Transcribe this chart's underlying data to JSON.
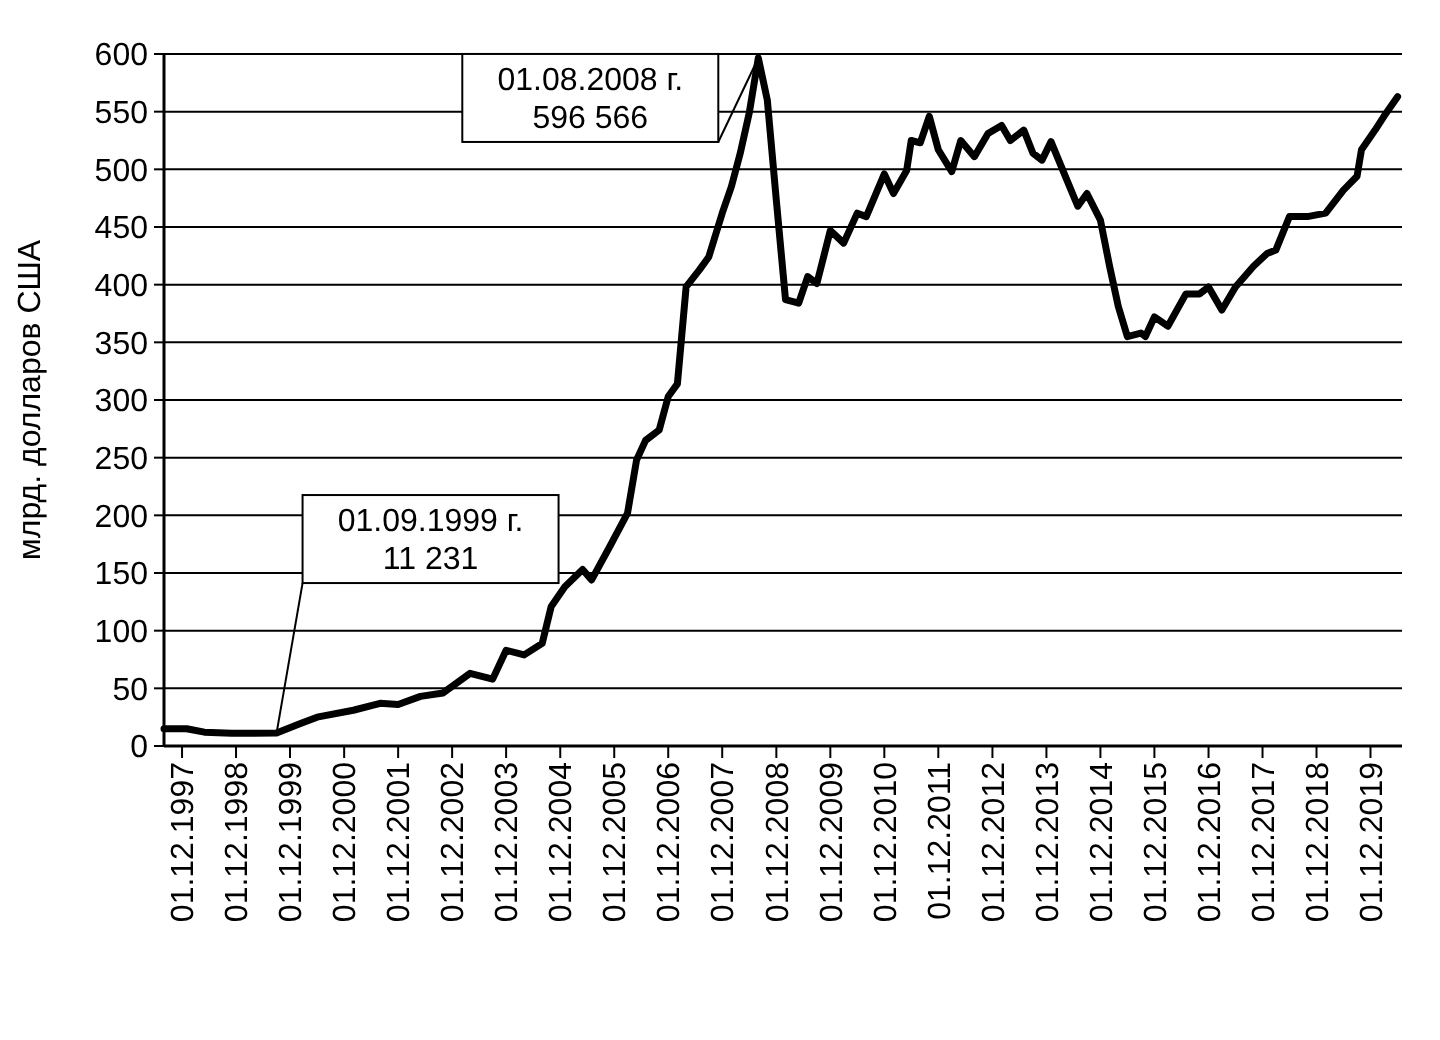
{
  "chart_data": {
    "type": "line",
    "ylabel": "млрд. долларов США",
    "x": [
      "1997-08-01",
      "1998-01-01",
      "1998-05-01",
      "1998-11-01",
      "1999-09-01",
      "2000-02-01",
      "2000-06-01",
      "2001-02-01",
      "2001-08-01",
      "2001-12-01",
      "2002-05-01",
      "2002-10-01",
      "2003-04-01",
      "2003-09-01",
      "2003-12-01",
      "2004-04-01",
      "2004-08-01",
      "2004-10-01",
      "2005-01-01",
      "2005-05-01",
      "2005-07-01",
      "2005-11-01",
      "2006-03-01",
      "2006-05-01",
      "2006-07-01",
      "2006-10-01",
      "2006-12-01",
      "2007-02-01",
      "2007-04-01",
      "2007-07-01",
      "2007-09-01",
      "2007-12-01",
      "2008-02-01",
      "2008-04-01",
      "2008-06-01",
      "2008-08-01",
      "2008-10-01",
      "2008-12-01",
      "2009-02-01",
      "2009-05-01",
      "2009-07-01",
      "2009-09-01",
      "2009-12-01",
      "2010-03-01",
      "2010-06-01",
      "2010-08-01",
      "2010-12-01",
      "2011-02-01",
      "2011-05-01",
      "2011-06-01",
      "2011-08-01",
      "2011-10-01",
      "2011-12-01",
      "2012-03-01",
      "2012-05-01",
      "2012-08-01",
      "2012-11-01",
      "2013-02-01",
      "2013-04-01",
      "2013-07-01",
      "2013-09-01",
      "2013-11-01",
      "2014-01-01",
      "2014-04-01",
      "2014-07-01",
      "2014-09-01",
      "2014-12-01",
      "2015-02-01",
      "2015-04-01",
      "2015-06-01",
      "2015-09-01",
      "2015-10-01",
      "2015-12-01",
      "2016-03-01",
      "2016-07-01",
      "2016-10-01",
      "2016-12-01",
      "2017-03-01",
      "2017-06-01",
      "2017-10-01",
      "2018-01-01",
      "2018-03-01",
      "2018-06-01",
      "2018-10-01",
      "2019-02-01",
      "2019-06-01",
      "2019-09-01",
      "2019-10-01",
      "2020-01-01",
      "2020-03-01",
      "2020-06-01"
    ],
    "series": [
      {
        "color": "#000000",
        "values": [
          15,
          15,
          12,
          11,
          11.231,
          19,
          25,
          31,
          37,
          36,
          43,
          46,
          63,
          58,
          83,
          79,
          89,
          121,
          138,
          153,
          144,
          173,
          202,
          248,
          265,
          274,
          303,
          314,
          398,
          413,
          424,
          462,
          485,
          514,
          549,
          596.566,
          560,
          473,
          387,
          384,
          407,
          401,
          447,
          436,
          462,
          459,
          496,
          479,
          499,
          525,
          523,
          546,
          517,
          498,
          525,
          511,
          531,
          538,
          525,
          534,
          514,
          508,
          524,
          496,
          468,
          479,
          456,
          416,
          381,
          355,
          358,
          355,
          372,
          364,
          392,
          392,
          398,
          378,
          398,
          416,
          427,
          430,
          459,
          459,
          462,
          482,
          494,
          517,
          534,
          546,
          563
        ]
      }
    ],
    "xlim": [
      "1997-08-01",
      "2020-07-01"
    ],
    "xticks": [
      {
        "value": "1997-12-01",
        "label": "01.12.1997"
      },
      {
        "value": "1998-12-01",
        "label": "01.12.1998"
      },
      {
        "value": "1999-12-01",
        "label": "01.12.1999"
      },
      {
        "value": "2000-12-01",
        "label": "01.12.2000"
      },
      {
        "value": "2001-12-01",
        "label": "01.12.2001"
      },
      {
        "value": "2002-12-01",
        "label": "01.12.2002"
      },
      {
        "value": "2003-12-01",
        "label": "01.12.2003"
      },
      {
        "value": "2004-12-01",
        "label": "01.12.2004"
      },
      {
        "value": "2005-12-01",
        "label": "01.12.2005"
      },
      {
        "value": "2006-12-01",
        "label": "01.12.2006"
      },
      {
        "value": "2007-12-01",
        "label": "01.12.2007"
      },
      {
        "value": "2008-12-01",
        "label": "01.12.2008"
      },
      {
        "value": "2009-12-01",
        "label": "01.12.2009"
      },
      {
        "value": "2010-12-01",
        "label": "01.12.2010"
      },
      {
        "value": "2011-12-01",
        "label": "01.12.2011"
      },
      {
        "value": "2012-12-01",
        "label": "01.12.2012"
      },
      {
        "value": "2013-12-01",
        "label": "01.12.2013"
      },
      {
        "value": "2014-12-01",
        "label": "01.12.2014"
      },
      {
        "value": "2015-12-01",
        "label": "01.12.2015"
      },
      {
        "value": "2016-12-01",
        "label": "01.12.2016"
      },
      {
        "value": "2017-12-01",
        "label": "01.12.2017"
      },
      {
        "value": "2018-12-01",
        "label": "01.12.2018"
      },
      {
        "value": "2019-12-01",
        "label": "01.12.2019"
      }
    ],
    "ylim": [
      0,
      600
    ],
    "yticks": [
      0,
      50,
      100,
      150,
      200,
      250,
      300,
      350,
      400,
      450,
      500,
      550,
      600
    ],
    "grid": "y",
    "marker": "none",
    "line_style": "solid",
    "annotations": [
      {
        "text": "01.09.1999 г.\n11 231",
        "x": "1999-09-01",
        "y": 11.231
      },
      {
        "text": "01.08.2008 г.\n596 566",
        "x": "2008-08-01",
        "y": 596.566
      }
    ]
  }
}
